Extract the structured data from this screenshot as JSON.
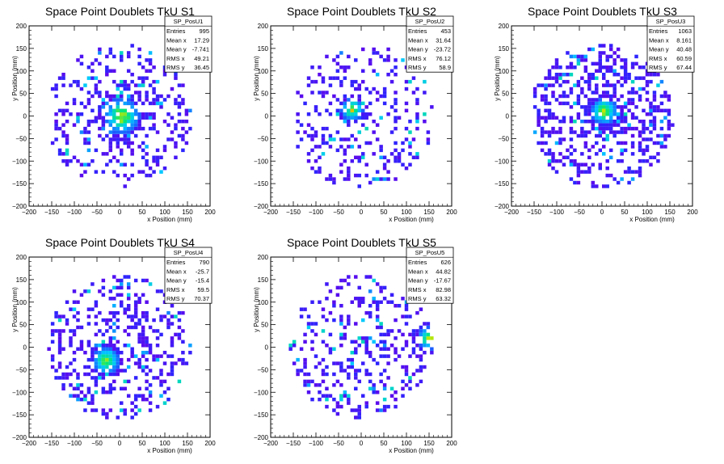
{
  "chart_data": [
    {
      "type": "heatmap",
      "title": "Space Point Doublets TkU S1",
      "xlabel": "x Position (mm)",
      "ylabel": "y Position (mm)",
      "xlim": [
        -200,
        200
      ],
      "ylim": [
        -200,
        200
      ],
      "xticks": [
        "−200",
        "−150",
        "−100",
        "−50",
        "0",
        "50",
        "100",
        "150",
        "200"
      ],
      "yticks": [
        "−200",
        "−150",
        "−100",
        "−50",
        "0",
        "50",
        "100",
        "150",
        "200"
      ],
      "stats": {
        "name": "SP_PosU1",
        "rows": [
          {
            "label": "Entries",
            "value": "995"
          },
          {
            "label": "Mean x",
            "value": "17.29"
          },
          {
            "label": "Mean y",
            "value": "-7.741"
          },
          {
            "label": "RMS x",
            "value": "49.21"
          },
          {
            "label": "RMS y",
            "value": "36.45"
          }
        ]
      },
      "distribution": {
        "center_x": 5,
        "center_y": 0,
        "hot_radius": 40,
        "max_radius": 160
      },
      "palette": "rainbow (purple-blue-cyan-green-yellow-red)"
    },
    {
      "type": "heatmap",
      "title": "Space Point Doublets TkU S2",
      "xlabel": "x Position (mm)",
      "ylabel": "y Position (mm)",
      "xlim": [
        -200,
        200
      ],
      "ylim": [
        -200,
        200
      ],
      "xticks": [
        "−200",
        "−150",
        "−100",
        "−50",
        "0",
        "50",
        "100",
        "150",
        "200"
      ],
      "yticks": [
        "−200",
        "−150",
        "−100",
        "−50",
        "0",
        "50",
        "100",
        "150",
        "200"
      ],
      "stats": {
        "name": "SP_PosU2",
        "rows": [
          {
            "label": "Entries",
            "value": "453"
          },
          {
            "label": "Mean x",
            "value": "31.64"
          },
          {
            "label": "Mean y",
            "value": "-23.72"
          },
          {
            "label": "RMS x",
            "value": "76.12"
          },
          {
            "label": "RMS y",
            "value": "58.9"
          }
        ]
      },
      "distribution": {
        "center_x": -20,
        "center_y": 15,
        "hot_radius": 25,
        "max_radius": 160
      },
      "palette": "rainbow"
    },
    {
      "type": "heatmap",
      "title": "Space Point Doublets TkU S3",
      "xlabel": "x Position (mm)",
      "ylabel": "y Position (mm)",
      "xlim": [
        -200,
        200
      ],
      "ylim": [
        -200,
        200
      ],
      "xticks": [
        "−200",
        "−150",
        "−100",
        "−50",
        "0",
        "50",
        "100",
        "150",
        "200"
      ],
      "yticks": [
        "−200",
        "−150",
        "−100",
        "−50",
        "0",
        "50",
        "100",
        "150",
        "200"
      ],
      "stats": {
        "name": "SP_PosU3",
        "rows": [
          {
            "label": "Entries",
            "value": "1063"
          },
          {
            "label": "Mean x",
            "value": "8.161"
          },
          {
            "label": "Mean y",
            "value": "40.48"
          },
          {
            "label": "RMS x",
            "value": "60.59"
          },
          {
            "label": "RMS y",
            "value": "67.44"
          }
        ]
      },
      "distribution": {
        "center_x": 5,
        "center_y": 10,
        "hot_radius": 30,
        "max_radius": 160
      },
      "palette": "rainbow"
    },
    {
      "type": "heatmap",
      "title": "Space Point Doublets TkU S4",
      "xlabel": "x Position (mm)",
      "ylabel": "y Position (mm)",
      "xlim": [
        -200,
        200
      ],
      "ylim": [
        -200,
        200
      ],
      "xticks": [
        "−200",
        "−150",
        "−100",
        "−50",
        "0",
        "50",
        "100",
        "150",
        "200"
      ],
      "yticks": [
        "−200",
        "−150",
        "−100",
        "−50",
        "0",
        "50",
        "100",
        "150",
        "200"
      ],
      "stats": {
        "name": "SP_PosU4",
        "rows": [
          {
            "label": "Entries",
            "value": "790"
          },
          {
            "label": "Mean x",
            "value": "-25.7"
          },
          {
            "label": "Mean y",
            "value": "-15.4"
          },
          {
            "label": "RMS x",
            "value": "59.5"
          },
          {
            "label": "RMS y",
            "value": "70.37"
          }
        ]
      },
      "distribution": {
        "center_x": -30,
        "center_y": -30,
        "hot_radius": 30,
        "max_radius": 160
      },
      "palette": "rainbow"
    },
    {
      "type": "heatmap",
      "title": "Space Point Doublets TkU S5",
      "xlabel": "x Position (mm)",
      "ylabel": "y Position (mm)",
      "xlim": [
        -200,
        200
      ],
      "ylim": [
        -200,
        200
      ],
      "xticks": [
        "−200",
        "−150",
        "−100",
        "−50",
        "0",
        "50",
        "100",
        "150",
        "200"
      ],
      "yticks": [
        "−200",
        "−150",
        "−100",
        "−50",
        "0",
        "50",
        "100",
        "150",
        "200"
      ],
      "stats": {
        "name": "SP_PosU5",
        "rows": [
          {
            "label": "Entries",
            "value": "626"
          },
          {
            "label": "Mean x",
            "value": "44.82"
          },
          {
            "label": "Mean y",
            "value": "-17.67"
          },
          {
            "label": "RMS x",
            "value": "82.98"
          },
          {
            "label": "RMS y",
            "value": "63.32"
          }
        ]
      },
      "distribution": {
        "center_x": 150,
        "center_y": 20,
        "hot_radius": 25,
        "max_radius": 160
      },
      "palette": "rainbow"
    }
  ]
}
